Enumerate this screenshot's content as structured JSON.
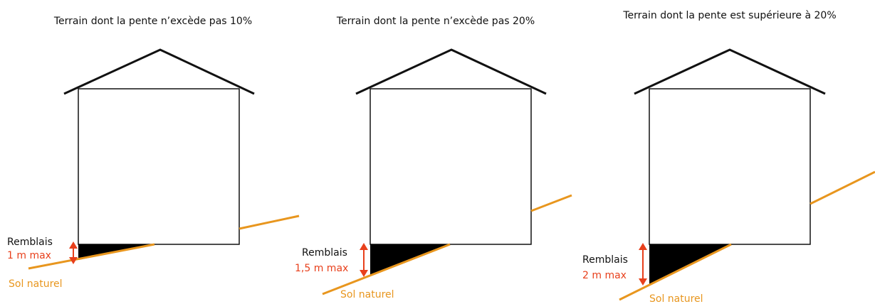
{
  "panels": [
    {
      "title": "Terrain dont la pente n’excède pas 10%",
      "fill_label": "Remblais",
      "max_label": "1 m max",
      "ground_label": "Sol naturel"
    },
    {
      "title": "Terrain dont la pente n’excède pas 20%",
      "fill_label": "Remblais",
      "max_label": "1,5 m max",
      "ground_label": "Sol naturel"
    },
    {
      "title": "Terrain dont la pente est supérieure à 20%",
      "fill_label": "Remblais",
      "max_label": "2 m max",
      "ground_label": "Sol naturel"
    }
  ]
}
